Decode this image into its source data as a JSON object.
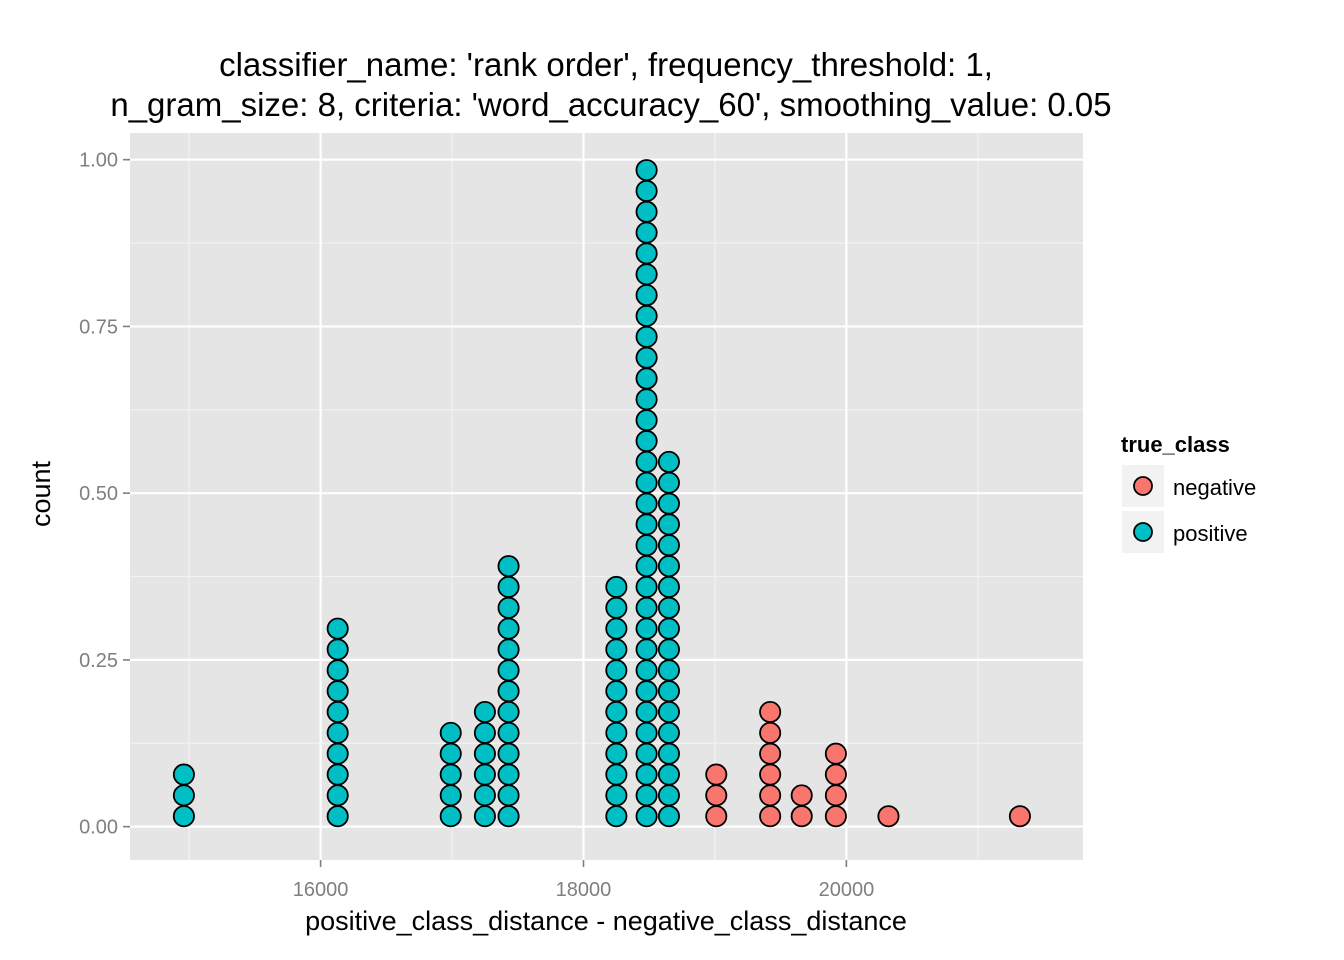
{
  "chart_data": {
    "type": "dotplot",
    "title_lines": [
      "classifier_name: 'rank order', frequency_threshold: 1,",
      "n_gram_size: 8, criteria: 'word_accuracy_60', smoothing_value: 0.05"
    ],
    "xlabel": "positive_class_distance - negative_class_distance",
    "ylabel": "count",
    "xlim": [
      14550,
      21800
    ],
    "ylim": [
      -0.05,
      1.04
    ],
    "x_ticks": [
      16000,
      18000,
      20000
    ],
    "x_tick_labels": [
      "16000",
      "18000",
      "20000"
    ],
    "y_ticks": [
      0,
      0.25,
      0.5,
      0.75,
      1.0
    ],
    "y_tick_labels": [
      "0.00",
      "0.25",
      "0.50",
      "0.75",
      "1.00"
    ],
    "grid": true,
    "dot_step": 0.03125,
    "legend": {
      "title": "true_class",
      "position": "right",
      "entries": [
        {
          "label": "negative",
          "color": "#F8766D"
        },
        {
          "label": "positive",
          "color": "#00BFC4"
        }
      ]
    },
    "series": [
      {
        "name": "negative",
        "color": "#F8766D",
        "stacks": [
          {
            "x": 19010,
            "count": 3
          },
          {
            "x": 19420,
            "count": 6
          },
          {
            "x": 19660,
            "count": 2
          },
          {
            "x": 19920,
            "count": 4
          },
          {
            "x": 20320,
            "count": 1
          },
          {
            "x": 21320,
            "count": 1
          }
        ]
      },
      {
        "name": "positive",
        "color": "#00BFC4",
        "stacks": [
          {
            "x": 14960,
            "count": 3
          },
          {
            "x": 16130,
            "count": 10
          },
          {
            "x": 16990,
            "count": 5
          },
          {
            "x": 17250,
            "count": 6
          },
          {
            "x": 17430,
            "count": 13
          },
          {
            "x": 18250,
            "count": 12
          },
          {
            "x": 18480,
            "count": 32
          },
          {
            "x": 18650,
            "count": 18
          }
        ]
      }
    ]
  }
}
